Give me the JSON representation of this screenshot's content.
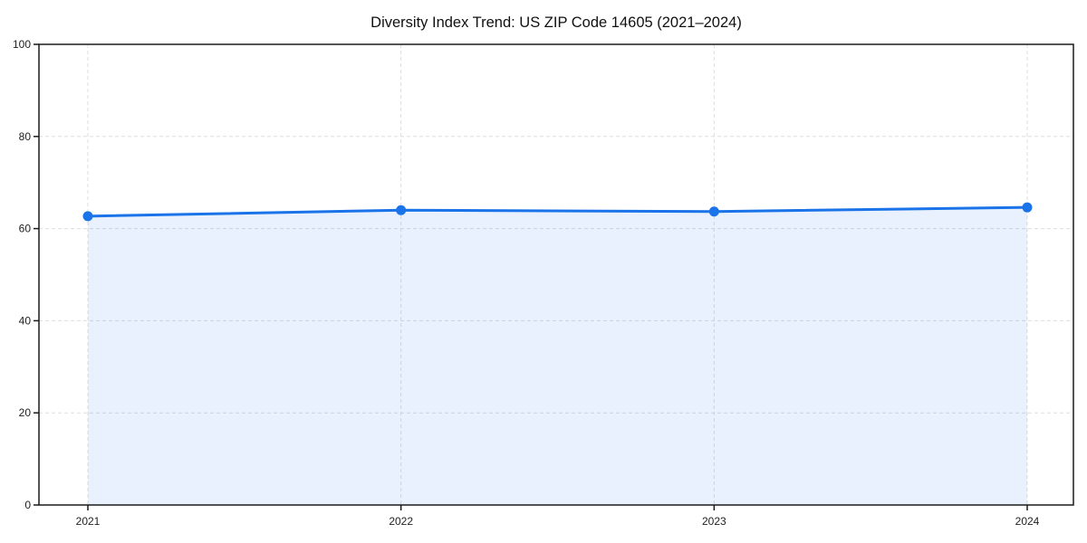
{
  "chart_data": {
    "type": "area",
    "title": "Diversity Index Trend: US ZIP Code 14605 (2021–2024)",
    "x": [
      "2021",
      "2022",
      "2023",
      "2024"
    ],
    "series": [
      {
        "name": "Diversity Index",
        "values": [
          62.7,
          64.0,
          63.7,
          64.6
        ]
      }
    ],
    "xlabel": "",
    "ylabel": "",
    "ylim": [
      0,
      100
    ],
    "yticks": [
      0,
      20,
      40,
      60,
      80,
      100
    ],
    "grid": "dashed horizontal and vertical",
    "legend": "none",
    "marker": "circle",
    "colors": {
      "line": "#1a73e8",
      "marker": "#1a73e8",
      "fill": "rgba(26,115,232,0.10)",
      "gridline": "#dddddd",
      "spine": "#1a1a1a",
      "tick_label": "#222222",
      "title": "#111111",
      "background": "#ffffff"
    }
  }
}
